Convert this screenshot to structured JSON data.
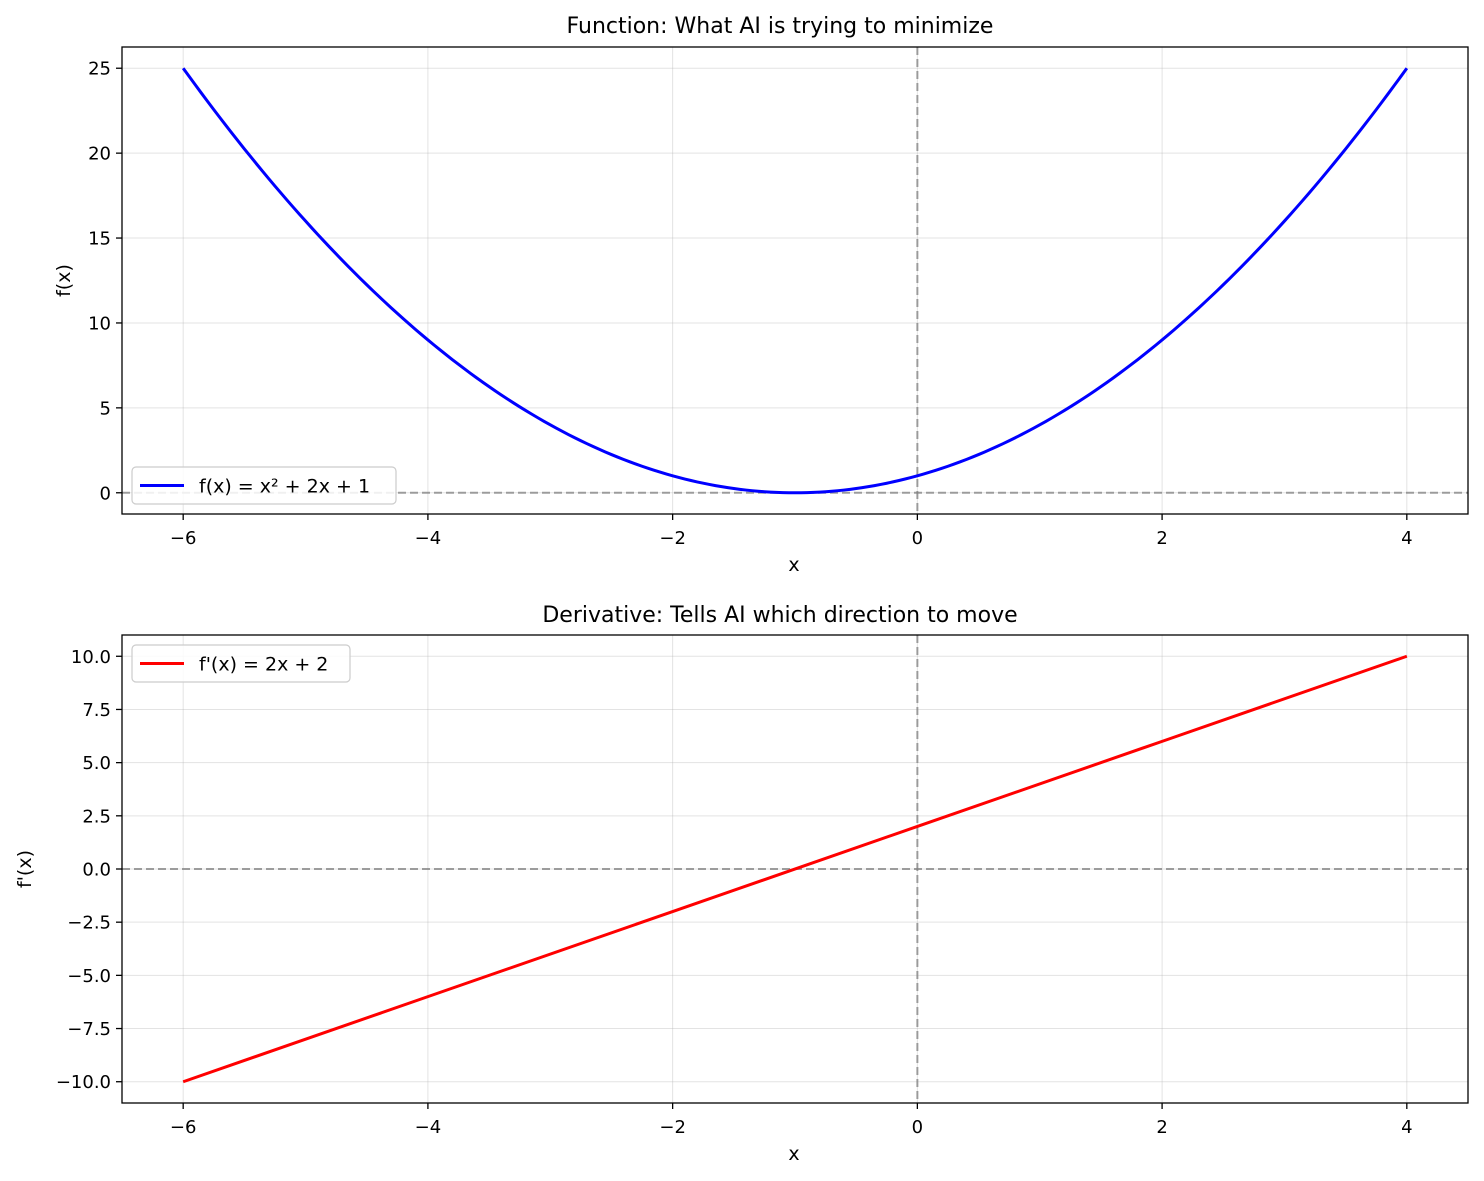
{
  "chart_data": [
    {
      "type": "line",
      "title": "Function: What AI is trying to minimize",
      "xlabel": "x",
      "ylabel": "f(x)",
      "xlim": [
        -6.5,
        4.5
      ],
      "ylim": [
        -1.25,
        26.25
      ],
      "xticks": [
        -6,
        -4,
        -2,
        0,
        2,
        4
      ],
      "xtick_labels": [
        "−6",
        "−4",
        "−2",
        "0",
        "2",
        "4"
      ],
      "yticks": [
        0,
        5,
        10,
        15,
        20,
        25
      ],
      "ytick_labels": [
        "0",
        "5",
        "10",
        "15",
        "20",
        "25"
      ],
      "grid": true,
      "legend_position": "lower-left",
      "reference_lines": {
        "horizontal": 0,
        "vertical": 0,
        "style": "dashed",
        "color": "#808080"
      },
      "series": [
        {
          "name": "f(x) = x² + 2x + 1",
          "color": "#0000ff",
          "x": [
            -6,
            -5.5,
            -5,
            -4.5,
            -4,
            -3.5,
            -3,
            -2.5,
            -2,
            -1.5,
            -1,
            -0.5,
            0,
            0.5,
            1,
            1.5,
            2,
            2.5,
            3,
            3.5,
            4
          ],
          "y": [
            25,
            20.25,
            16,
            12.25,
            9,
            6.25,
            4,
            2.25,
            1,
            0.25,
            0,
            0.25,
            1,
            2.25,
            4,
            6.25,
            9,
            12.25,
            16,
            20.25,
            25
          ]
        }
      ]
    },
    {
      "type": "line",
      "title": "Derivative: Tells AI which direction to move",
      "xlabel": "x",
      "ylabel": "f'(x)",
      "xlim": [
        -6.5,
        4.5
      ],
      "ylim": [
        -11,
        11
      ],
      "xticks": [
        -6,
        -4,
        -2,
        0,
        2,
        4
      ],
      "xtick_labels": [
        "−6",
        "−4",
        "−2",
        "0",
        "2",
        "4"
      ],
      "yticks": [
        10,
        7.5,
        5,
        2.5,
        0,
        -2.5,
        -5,
        -7.5,
        -10
      ],
      "ytick_labels": [
        "10.0",
        "7.5",
        "5.0",
        "2.5",
        "0.0",
        "−2.5",
        "−5.0",
        "−7.5",
        "−10.0"
      ],
      "grid": true,
      "legend_position": "upper-left",
      "reference_lines": {
        "horizontal": 0,
        "vertical": 0,
        "style": "dashed",
        "color": "#808080"
      },
      "series": [
        {
          "name": "f'(x) = 2x + 2",
          "color": "#ff0000",
          "x": [
            -6,
            -4,
            -2,
            0,
            2,
            4
          ],
          "y": [
            -10,
            -6,
            -2,
            2,
            6,
            10
          ]
        }
      ]
    }
  ]
}
